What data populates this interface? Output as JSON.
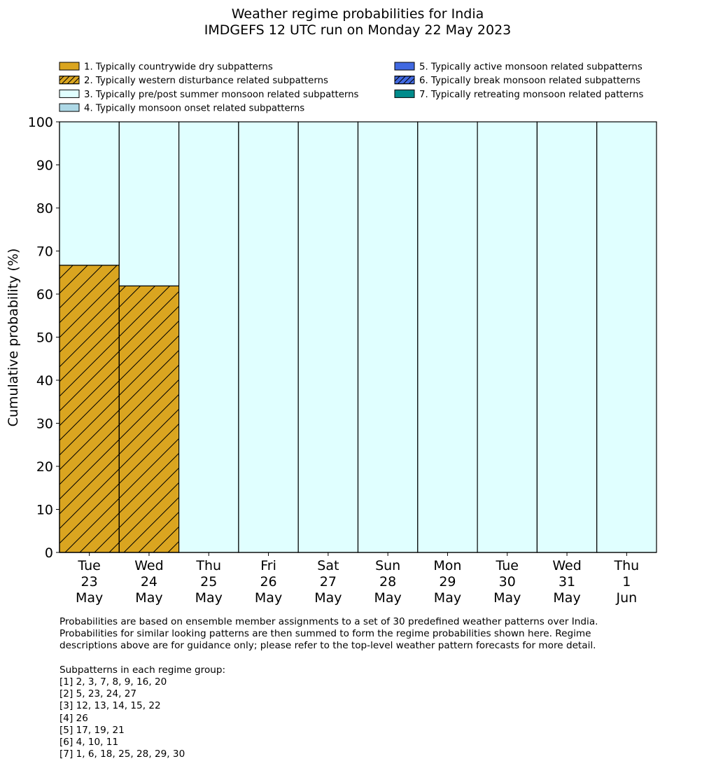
{
  "chart_data": {
    "type": "bar",
    "stacked": true,
    "title": "Weather regime probabilities for India",
    "subtitle": "IMDGEFS 12 UTC run on Monday 22 May 2023",
    "xlabel": "",
    "ylabel": "Cumulative probability (%)",
    "ylim": [
      0,
      100
    ],
    "yticks": [
      0,
      10,
      20,
      30,
      40,
      50,
      60,
      70,
      80,
      90,
      100
    ],
    "legend_placement": "top",
    "categories": [
      [
        "Tue",
        "23",
        "May"
      ],
      [
        "Wed",
        "24",
        "May"
      ],
      [
        "Thu",
        "25",
        "May"
      ],
      [
        "Fri",
        "26",
        "May"
      ],
      [
        "Sat",
        "27",
        "May"
      ],
      [
        "Sun",
        "28",
        "May"
      ],
      [
        "Mon",
        "29",
        "May"
      ],
      [
        "Tue",
        "30",
        "May"
      ],
      [
        "Wed",
        "31",
        "May"
      ],
      [
        "Thu",
        "1",
        "Jun"
      ]
    ],
    "series": [
      {
        "name": "1. Typically countrywide dry subpatterns",
        "color": "#DAA520",
        "hatch": false,
        "values": [
          0,
          0,
          0,
          0,
          0,
          0,
          0,
          0,
          0,
          0
        ]
      },
      {
        "name": "2. Typically western disturbance related subpatterns",
        "color": "#DAA520",
        "hatch": true,
        "values": [
          66.7,
          61.9,
          0,
          0,
          0,
          0,
          0,
          0,
          0,
          0
        ]
      },
      {
        "name": "3. Typically pre/post summer monsoon related subpatterns",
        "color": "#E0FFFF",
        "hatch": false,
        "values": [
          33.3,
          38.1,
          100,
          100,
          100,
          100,
          100,
          100,
          100,
          100
        ]
      },
      {
        "name": "4. Typically monsoon onset related subpatterns",
        "color": "#ADD8E6",
        "hatch": false,
        "values": [
          0,
          0,
          0,
          0,
          0,
          0,
          0,
          0,
          0,
          0
        ]
      },
      {
        "name": "5. Typically active monsoon related subpatterns",
        "color": "#4169E1",
        "hatch": false,
        "values": [
          0,
          0,
          0,
          0,
          0,
          0,
          0,
          0,
          0,
          0
        ]
      },
      {
        "name": "6. Typically break monsoon related subpatterns",
        "color": "#4169E1",
        "hatch": true,
        "values": [
          0,
          0,
          0,
          0,
          0,
          0,
          0,
          0,
          0,
          0
        ]
      },
      {
        "name": "7. Typically retreating monsoon related patterns",
        "color": "#008B8B",
        "hatch": false,
        "values": [
          0,
          0,
          0,
          0,
          0,
          0,
          0,
          0,
          0,
          0
        ]
      }
    ]
  },
  "notes": {
    "text": "Probabilities are based on ensemble member assignments to a set of 30 predefined weather patterns over India.\nProbabilities for similar looking patterns are then summed to form the regime probabilities shown here. Regime\ndescriptions above are for guidance only; please refer to the top-level weather pattern forecasts for more detail.\n\nSubpatterns in each regime group:\n[1] 2, 3, 7, 8, 9, 16, 20\n[2] 5, 23, 24, 27\n[3] 12, 13, 14, 15, 22\n[4] 26\n[5] 17, 19, 21\n[6] 4, 10, 11\n[7] 1, 6, 18, 25, 28, 29, 30"
  }
}
